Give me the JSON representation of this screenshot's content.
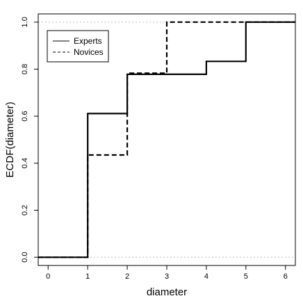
{
  "chart_data": {
    "type": "line",
    "subtype": "step-ecdf",
    "xlabel": "diameter",
    "ylabel": "ECDF(diameter)",
    "xlim": [
      -0.25,
      6.25
    ],
    "ylim": [
      -0.035,
      1.035
    ],
    "x_ticks": [
      "0",
      "1",
      "2",
      "3",
      "4",
      "5",
      "6"
    ],
    "y_ticks": [
      "0.0",
      "0.2",
      "0.4",
      "0.6",
      "0.8",
      "1.0"
    ],
    "reference_lines": [
      0,
      1
    ],
    "legend_position": "top-left",
    "series": [
      {
        "name": "Experts",
        "line_style": "solid",
        "steps": [
          {
            "x": 1,
            "y": 0.611
          },
          {
            "x": 2,
            "y": 0.778
          },
          {
            "x": 4,
            "y": 0.833
          },
          {
            "x": 5,
            "y": 1.0
          }
        ]
      },
      {
        "name": "Novices",
        "line_style": "dashed",
        "steps": [
          {
            "x": 1,
            "y": 0.435
          },
          {
            "x": 2,
            "y": 0.783
          },
          {
            "x": 3,
            "y": 1.0
          }
        ]
      }
    ]
  }
}
